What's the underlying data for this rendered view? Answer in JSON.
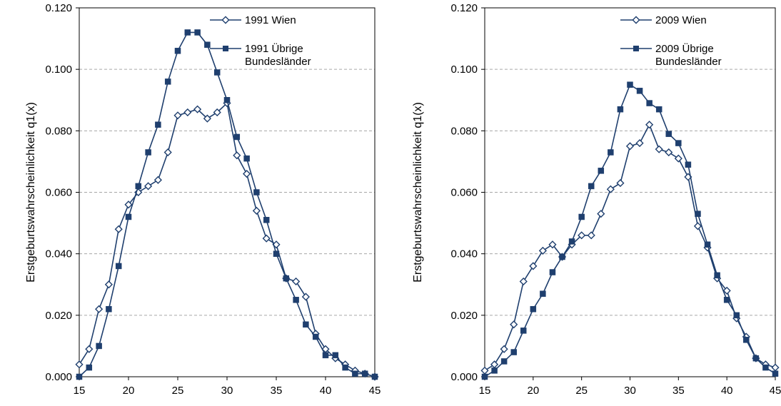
{
  "colors": {
    "series": "#1f3f6e",
    "grid": "#a6a6a6",
    "axis": "#000000"
  },
  "chart_data": [
    {
      "type": "line",
      "ylabel": "Erstgeburtswahrscheinlichkeit q1(x)",
      "xlabel": "",
      "xlim": [
        15,
        45
      ],
      "ylim": [
        0,
        0.12
      ],
      "x_ticks": [
        "15",
        "20",
        "25",
        "30",
        "35",
        "40",
        "45"
      ],
      "y_ticks": [
        "0.000",
        "0.020",
        "0.040",
        "0.060",
        "0.080",
        "0.100",
        "0.120"
      ],
      "grid": "horizontal dashed",
      "legend_position": "top-right",
      "x": [
        15,
        16,
        17,
        18,
        19,
        20,
        21,
        22,
        23,
        24,
        25,
        26,
        27,
        28,
        29,
        30,
        31,
        32,
        33,
        34,
        35,
        36,
        37,
        38,
        39,
        40,
        41,
        42,
        43,
        44,
        45
      ],
      "series": [
        {
          "name": "1991 Wien",
          "marker": "diamond-open",
          "values": [
            0.004,
            0.009,
            0.022,
            0.03,
            0.048,
            0.056,
            0.06,
            0.062,
            0.064,
            0.073,
            0.085,
            0.086,
            0.087,
            0.084,
            0.086,
            0.089,
            0.072,
            0.066,
            0.054,
            0.045,
            0.043,
            0.032,
            0.031,
            0.026,
            0.014,
            0.009,
            0.006,
            0.004,
            0.002,
            0.001,
            0.0
          ]
        },
        {
          "name": "1991 Übrige Bundesländer",
          "marker": "square-filled",
          "values": [
            0.0,
            0.003,
            0.01,
            0.022,
            0.036,
            0.052,
            0.062,
            0.073,
            0.082,
            0.096,
            0.106,
            0.112,
            0.112,
            0.108,
            0.099,
            0.09,
            0.078,
            0.071,
            0.06,
            0.051,
            0.04,
            0.032,
            0.025,
            0.017,
            0.013,
            0.007,
            0.007,
            0.003,
            0.001,
            0.001,
            0.0
          ]
        }
      ]
    },
    {
      "type": "line",
      "ylabel": "Erstgeburtswahrscheinlichkeit q1(x)",
      "xlabel": "",
      "xlim": [
        15,
        45
      ],
      "ylim": [
        0,
        0.12
      ],
      "x_ticks": [
        "15",
        "20",
        "25",
        "30",
        "35",
        "40",
        "45"
      ],
      "y_ticks": [
        "0.000",
        "0.020",
        "0.040",
        "0.060",
        "0.080",
        "0.100",
        "0.120"
      ],
      "grid": "horizontal dashed",
      "legend_position": "top-right",
      "x": [
        15,
        16,
        17,
        18,
        19,
        20,
        21,
        22,
        23,
        24,
        25,
        26,
        27,
        28,
        29,
        30,
        31,
        32,
        33,
        34,
        35,
        36,
        37,
        38,
        39,
        40,
        41,
        42,
        43,
        44,
        45
      ],
      "series": [
        {
          "name": "2009 Wien",
          "marker": "diamond-open",
          "values": [
            0.002,
            0.004,
            0.009,
            0.017,
            0.031,
            0.036,
            0.041,
            0.043,
            0.039,
            0.043,
            0.046,
            0.046,
            0.053,
            0.061,
            0.063,
            0.075,
            0.076,
            0.082,
            0.074,
            0.073,
            0.071,
            0.065,
            0.049,
            0.042,
            0.032,
            0.028,
            0.019,
            0.013,
            0.006,
            0.004,
            0.003
          ]
        },
        {
          "name": "2009 Übrige Bundesländer",
          "marker": "square-filled",
          "values": [
            0.0,
            0.002,
            0.005,
            0.008,
            0.015,
            0.022,
            0.027,
            0.034,
            0.039,
            0.044,
            0.052,
            0.062,
            0.067,
            0.073,
            0.087,
            0.095,
            0.093,
            0.089,
            0.087,
            0.079,
            0.076,
            0.069,
            0.053,
            0.043,
            0.033,
            0.025,
            0.02,
            0.012,
            0.006,
            0.003,
            0.001
          ]
        }
      ]
    }
  ]
}
